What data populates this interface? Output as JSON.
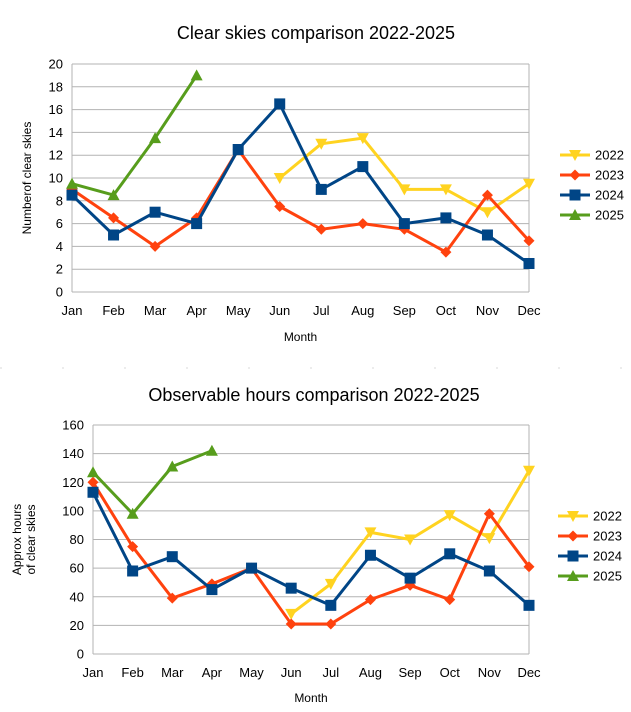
{
  "chart_data": [
    {
      "type": "line",
      "title": "Clear skies comparison 2022-2025",
      "xlabel": "Month",
      "ylabel": "Numberof clear skies",
      "categories": [
        "Jan",
        "Feb",
        "Mar",
        "Apr",
        "May",
        "Jun",
        "Jul",
        "Aug",
        "Sep",
        "Oct",
        "Nov",
        "Dec"
      ],
      "ylim": [
        0,
        20
      ],
      "yticks": [
        0,
        2,
        4,
        6,
        8,
        10,
        12,
        14,
        16,
        18,
        20
      ],
      "legend_position": "right",
      "series": [
        {
          "name": "2022",
          "color": "#ffd320",
          "marker": "triangle-down",
          "values": [
            null,
            null,
            null,
            null,
            null,
            10,
            13,
            13.5,
            9,
            9,
            7,
            9.5
          ]
        },
        {
          "name": "2023",
          "color": "#ff420e",
          "marker": "diamond",
          "values": [
            9,
            6.5,
            4,
            6.5,
            12.5,
            7.5,
            5.5,
            6,
            5.5,
            3.5,
            8.5,
            4.5
          ]
        },
        {
          "name": "2024",
          "color": "#004586",
          "marker": "square",
          "values": [
            8.5,
            5,
            7,
            6,
            12.5,
            16.5,
            9,
            11,
            6,
            6.5,
            5,
            2.5
          ]
        },
        {
          "name": "2025",
          "color": "#579d1c",
          "marker": "triangle-up",
          "values": [
            9.5,
            8.5,
            13.5,
            19,
            null,
            null,
            null,
            null,
            null,
            null,
            null,
            null
          ]
        }
      ]
    },
    {
      "type": "line",
      "title": "Observable hours comparison 2022-2025",
      "xlabel": "Month",
      "ylabel": [
        "Approx hours",
        "of clear skies"
      ],
      "categories": [
        "Jan",
        "Feb",
        "Mar",
        "Apr",
        "May",
        "Jun",
        "Jul",
        "Aug",
        "Sep",
        "Oct",
        "Nov",
        "Dec"
      ],
      "ylim": [
        0,
        160
      ],
      "yticks": [
        0,
        20,
        40,
        60,
        80,
        100,
        120,
        140,
        160
      ],
      "legend_position": "right",
      "series": [
        {
          "name": "2022",
          "color": "#ffd320",
          "marker": "triangle-down",
          "values": [
            null,
            null,
            null,
            null,
            null,
            28,
            49,
            85,
            80,
            97,
            81,
            128
          ]
        },
        {
          "name": "2023",
          "color": "#ff420e",
          "marker": "diamond",
          "values": [
            120,
            75,
            39,
            49,
            60,
            21,
            21,
            38,
            48,
            38,
            98,
            61
          ]
        },
        {
          "name": "2024",
          "color": "#004586",
          "marker": "square",
          "values": [
            113,
            58,
            68,
            45,
            60,
            46,
            34,
            69,
            53,
            70,
            58,
            34
          ]
        },
        {
          "name": "2025",
          "color": "#579d1c",
          "marker": "triangle-up",
          "values": [
            127,
            98,
            131,
            142,
            null,
            null,
            null,
            null,
            null,
            null,
            null,
            null
          ]
        }
      ]
    }
  ]
}
